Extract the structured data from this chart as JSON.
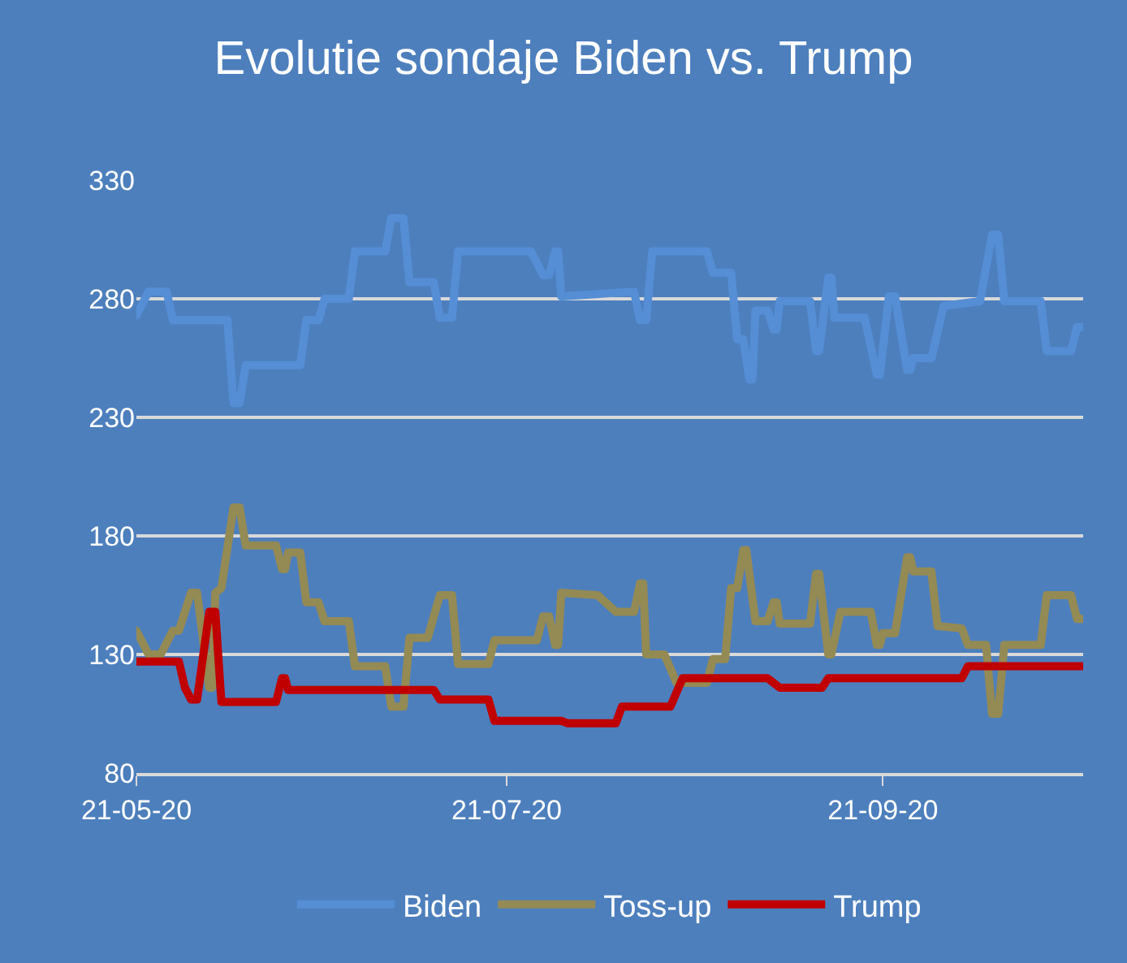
{
  "chart_data": {
    "type": "line",
    "title": "Evolutie sondaje Biden vs. Trump",
    "xlim": [
      "2020-05-21",
      "2020-10-24"
    ],
    "xticks": [
      {
        "value": "2020-05-21",
        "label": "21-05-20"
      },
      {
        "value": "2020-07-21",
        "label": "21-07-20"
      },
      {
        "value": "2020-09-21",
        "label": "21-09-20"
      }
    ],
    "ylim": [
      80,
      330
    ],
    "yticks": [
      80,
      130,
      180,
      230,
      280,
      330
    ],
    "grid": "y",
    "legend": "bottom",
    "marker": "none",
    "line_style": "solid",
    "series": [
      {
        "name": "Biden",
        "color": "#558ed5",
        "x": [
          "2020-05-21",
          "2020-05-23",
          "2020-05-26",
          "2020-05-27",
          "2020-06-05",
          "2020-06-06",
          "2020-06-07",
          "2020-06-08",
          "2020-06-17",
          "2020-06-18",
          "2020-06-20",
          "2020-06-21",
          "2020-06-25",
          "2020-06-26",
          "2020-07-01",
          "2020-07-02",
          "2020-07-04",
          "2020-07-05",
          "2020-07-09",
          "2020-07-10",
          "2020-07-12",
          "2020-07-13",
          "2020-07-25",
          "2020-07-27",
          "2020-07-28",
          "2020-07-29",
          "2020-07-29T12:00",
          "2020-07-30",
          "2020-08-11",
          "2020-08-12",
          "2020-08-13",
          "2020-08-14",
          "2020-08-23",
          "2020-08-24",
          "2020-08-27",
          "2020-08-28",
          "2020-08-29",
          "2020-08-30",
          "2020-08-30T12:00",
          "2020-08-31",
          "2020-09-02",
          "2020-09-03",
          "2020-09-03T12:00",
          "2020-09-04",
          "2020-09-09",
          "2020-09-10",
          "2020-09-10T12:00",
          "2020-09-12",
          "2020-09-12T12:00",
          "2020-09-13",
          "2020-09-18",
          "2020-09-20",
          "2020-09-20T12:00",
          "2020-09-22",
          "2020-09-23",
          "2020-09-25",
          "2020-09-25T12:00",
          "2020-09-26",
          "2020-09-29",
          "2020-10-01",
          "2020-10-07",
          "2020-10-09",
          "2020-10-10",
          "2020-10-11",
          "2020-10-17",
          "2020-10-18",
          "2020-10-22",
          "2020-10-23",
          "2020-10-24"
        ],
        "values": [
          273,
          283,
          283,
          271,
          271,
          236,
          236,
          252,
          252,
          271,
          271,
          280,
          280,
          300,
          300,
          314,
          314,
          287,
          287,
          272,
          272,
          300,
          300,
          290,
          290,
          300,
          300,
          281,
          283,
          271,
          271,
          300,
          300,
          291,
          291,
          263,
          263,
          246,
          246,
          275,
          275,
          267,
          267,
          279,
          279,
          258,
          258,
          289,
          289,
          272,
          272,
          248,
          248,
          281,
          281,
          250,
          250,
          255,
          255,
          277,
          279,
          307,
          307,
          279,
          279,
          258,
          258,
          268,
          268
        ]
      },
      {
        "name": "Toss-up",
        "color": "#948a54",
        "x": [
          "2020-05-21",
          "2020-05-23",
          "2020-05-25",
          "2020-05-27",
          "2020-05-28",
          "2020-05-30",
          "2020-05-31",
          "2020-06-02",
          "2020-06-02T12:00",
          "2020-06-03",
          "2020-06-04",
          "2020-06-06",
          "2020-06-07",
          "2020-06-08",
          "2020-06-13",
          "2020-06-14",
          "2020-06-14T12:00",
          "2020-06-15",
          "2020-06-17",
          "2020-06-18",
          "2020-06-20",
          "2020-06-21",
          "2020-06-25",
          "2020-06-26",
          "2020-07-01",
          "2020-07-02",
          "2020-07-04",
          "2020-07-05",
          "2020-07-08",
          "2020-07-10",
          "2020-07-12",
          "2020-07-13",
          "2020-07-18",
          "2020-07-19",
          "2020-07-26",
          "2020-07-27",
          "2020-07-28",
          "2020-07-29",
          "2020-07-29T12:00",
          "2020-07-30",
          "2020-08-05",
          "2020-08-08",
          "2020-08-11",
          "2020-08-12",
          "2020-08-12T12:00",
          "2020-08-13",
          "2020-08-16",
          "2020-08-18",
          "2020-08-23",
          "2020-08-24",
          "2020-08-26",
          "2020-08-27",
          "2020-08-28",
          "2020-08-29",
          "2020-08-29T12:00",
          "2020-08-31",
          "2020-09-02",
          "2020-09-03",
          "2020-09-03T12:00",
          "2020-09-04",
          "2020-09-09",
          "2020-09-10",
          "2020-09-10T12:00",
          "2020-09-12",
          "2020-09-12T12:00",
          "2020-09-14",
          "2020-09-19",
          "2020-09-20",
          "2020-09-20T12:00",
          "2020-09-21",
          "2020-09-23",
          "2020-09-25",
          "2020-09-25T12:00",
          "2020-09-26",
          "2020-09-29",
          "2020-09-30",
          "2020-10-04",
          "2020-10-05",
          "2020-10-08",
          "2020-10-09",
          "2020-10-10",
          "2020-10-11",
          "2020-10-17",
          "2020-10-18",
          "2020-10-22",
          "2020-10-23",
          "2020-10-24"
        ],
        "values": [
          140,
          130,
          130,
          140,
          140,
          156,
          156,
          116,
          116,
          156,
          158,
          192,
          192,
          176,
          176,
          166,
          166,
          173,
          173,
          152,
          152,
          144,
          144,
          125,
          125,
          108,
          108,
          137,
          137,
          155,
          155,
          126,
          126,
          136,
          136,
          146,
          146,
          134,
          134,
          156,
          155,
          148,
          148,
          160,
          160,
          130,
          130,
          118,
          118,
          128,
          128,
          158,
          158,
          174,
          174,
          144,
          144,
          152,
          152,
          143,
          143,
          164,
          164,
          130,
          130,
          148,
          148,
          134,
          134,
          139,
          139,
          171,
          171,
          165,
          165,
          142,
          141,
          134,
          134,
          105,
          105,
          134,
          134,
          155,
          155,
          145,
          145
        ]
      },
      {
        "name": "Trump",
        "color": "#c00000",
        "x": [
          "2020-05-21",
          "2020-05-28",
          "2020-05-29",
          "2020-05-30",
          "2020-05-31",
          "2020-06-02",
          "2020-06-03",
          "2020-06-04",
          "2020-06-13",
          "2020-06-14",
          "2020-06-14T12:00",
          "2020-06-15",
          "2020-07-09",
          "2020-07-10",
          "2020-07-18",
          "2020-07-19",
          "2020-07-30",
          "2020-07-31",
          "2020-08-08",
          "2020-08-09",
          "2020-08-17",
          "2020-08-19",
          "2020-09-02",
          "2020-09-04",
          "2020-09-11",
          "2020-09-12",
          "2020-10-04",
          "2020-10-05",
          "2020-10-24"
        ],
        "values": [
          127,
          127,
          116,
          111,
          111,
          148,
          148,
          110,
          110,
          120,
          120,
          115,
          115,
          111,
          111,
          102,
          102,
          101,
          101,
          108,
          108,
          120,
          120,
          116,
          116,
          120,
          120,
          125,
          125
        ]
      }
    ]
  }
}
